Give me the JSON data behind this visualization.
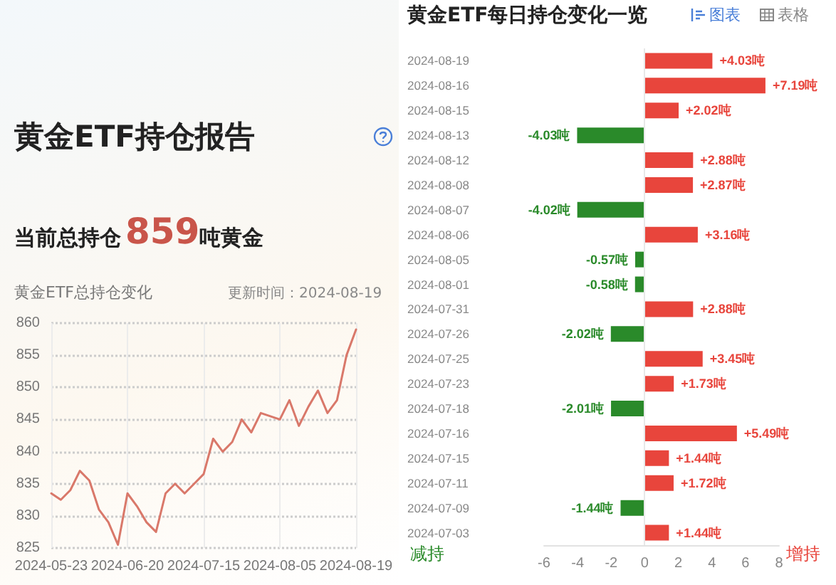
{
  "chart_data": [
    {
      "type": "line",
      "title": "黄金ETF持仓报告",
      "annotations": [
        "当前总持仓",
        "859",
        "吨黄金",
        "黄金ETF总持仓变化",
        "更新时间：2024-08-19"
      ],
      "categories": [
        "2024-05-23",
        null,
        null,
        null,
        null,
        null,
        null,
        null,
        "2024-06-20",
        null,
        null,
        null,
        null,
        null,
        null,
        null,
        "2024-07-15",
        null,
        null,
        null,
        null,
        null,
        null,
        null,
        "2024-08-05",
        null,
        null,
        null,
        null,
        null,
        null,
        null,
        "2024-08-19"
      ],
      "series": [
        {
          "color": "#d9786a",
          "values": [
            833.5,
            832.5,
            834,
            837,
            835.5,
            831,
            829,
            825.5,
            833.5,
            831.5,
            829,
            827.5,
            833.5,
            835,
            833.5,
            835,
            836.5,
            842,
            840,
            841.5,
            845,
            843,
            846,
            845.5,
            845,
            848,
            844,
            847,
            849.5,
            846,
            848,
            855,
            859
          ]
        }
      ],
      "ylim": [
        825,
        860
      ],
      "yticks": [
        825,
        830,
        835,
        840,
        845,
        850,
        855,
        860
      ],
      "grid": true,
      "marker": "none",
      "line_style": "solid"
    },
    {
      "type": "bar",
      "orientation": "horizontal",
      "title": "黄金ETF每日持仓变化一览",
      "annotations": [
        "图表",
        "表格",
        "减持",
        "增持"
      ],
      "categories": [
        "2024-08-19",
        "2024-08-16",
        "2024-08-15",
        "2024-08-13",
        "2024-08-12",
        "2024-08-08",
        "2024-08-07",
        "2024-08-06",
        "2024-08-05",
        "2024-08-01",
        "2024-07-31",
        "2024-07-26",
        "2024-07-25",
        "2024-07-23",
        "2024-07-18",
        "2024-07-16",
        "2024-07-15",
        "2024-07-11",
        "2024-07-09",
        "2024-07-03"
      ],
      "values": [
        4.03,
        7.19,
        2.02,
        -4.03,
        2.88,
        2.87,
        -4.02,
        3.16,
        -0.57,
        -0.58,
        2.88,
        -2.02,
        3.45,
        1.73,
        -2.01,
        5.49,
        1.44,
        1.72,
        -1.44,
        1.44
      ],
      "value_labels": [
        "+4.03吨",
        "+7.19吨",
        "+2.02吨",
        "-4.03吨",
        "+2.88吨",
        "+2.87吨",
        "-4.02吨",
        "+3.16吨",
        "-0.57吨",
        "-0.58吨",
        "+2.88吨",
        "-2.02吨",
        "+3.45吨",
        "+1.73吨",
        "-2.01吨",
        "+5.49吨",
        "+1.44吨",
        "+1.72吨",
        "-1.44吨",
        "+1.44吨"
      ],
      "colors": [
        "#e8453c",
        "#e8453c",
        "#e8453c",
        "#2a8a2a",
        "#e8453c",
        "#e8453c",
        "#2a8a2a",
        "#e8453c",
        "#2a8a2a",
        "#2a8a2a",
        "#e8453c",
        "#2a8a2a",
        "#e8453c",
        "#e8453c",
        "#2a8a2a",
        "#e8453c",
        "#e8453c",
        "#e8453c",
        "#2a8a2a",
        "#e8453c"
      ],
      "xlim": [
        -6,
        8
      ],
      "xticks": [
        -6,
        -4,
        -2,
        0,
        2,
        4,
        6,
        8
      ],
      "ref_lines": [
        {
          "axis": "x",
          "value": 0,
          "color": "#e8e8e8",
          "line_style": "solid"
        }
      ]
    }
  ]
}
